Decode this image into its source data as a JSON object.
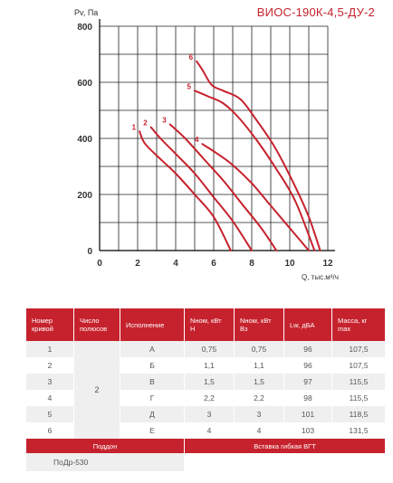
{
  "header": {
    "model": "ВИОС-190К-4,5-ДУ-2",
    "y_axis_label": "Pv, Па",
    "x_axis_label": "Q, тыс.м³/ч"
  },
  "colors": {
    "accent": "#c6222d",
    "grid": "#222222",
    "row_alt": "#efefef"
  },
  "chart_data": {
    "type": "line",
    "title": "ВИОС-190К-4,5-ДУ-2",
    "xlabel": "Q, тыс.м³/ч",
    "ylabel": "Pv, Па",
    "xlim": [
      0,
      12
    ],
    "ylim": [
      0,
      800
    ],
    "xticks": [
      0,
      2,
      4,
      6,
      8,
      10,
      12
    ],
    "yticks": [
      0,
      200,
      400,
      600,
      800
    ],
    "x_grid_step": 1,
    "y_grid_step": 100,
    "grid": true,
    "series": [
      {
        "name": "1",
        "points": [
          [
            2.1,
            425
          ],
          [
            2.4,
            380
          ],
          [
            3.3,
            320
          ],
          [
            4.0,
            275
          ],
          [
            5.0,
            200
          ],
          [
            6.0,
            120
          ],
          [
            6.9,
            0
          ]
        ]
      },
      {
        "name": "2",
        "points": [
          [
            2.7,
            440
          ],
          [
            3.2,
            400
          ],
          [
            4.0,
            345
          ],
          [
            5.0,
            275
          ],
          [
            6.0,
            190
          ],
          [
            7.0,
            105
          ],
          [
            8.0,
            0
          ]
        ]
      },
      {
        "name": "3",
        "points": [
          [
            3.7,
            450
          ],
          [
            4.5,
            400
          ],
          [
            5.5,
            325
          ],
          [
            6.5,
            250
          ],
          [
            7.5,
            165
          ],
          [
            8.5,
            80
          ],
          [
            9.3,
            0
          ]
        ]
      },
      {
        "name": "4",
        "points": [
          [
            5.4,
            380
          ],
          [
            6.2,
            345
          ],
          [
            7.0,
            305
          ],
          [
            8.0,
            240
          ],
          [
            9.0,
            160
          ],
          [
            10.0,
            80
          ],
          [
            11.0,
            0
          ]
        ]
      },
      {
        "name": "5",
        "points": [
          [
            5.0,
            570
          ],
          [
            5.7,
            550
          ],
          [
            6.5,
            525
          ],
          [
            7.3,
            475
          ],
          [
            8.3,
            390
          ],
          [
            9.3,
            290
          ],
          [
            10.3,
            175
          ],
          [
            11.3,
            0
          ]
        ]
      },
      {
        "name": "6",
        "points": [
          [
            5.1,
            675
          ],
          [
            5.4,
            645
          ],
          [
            5.9,
            590
          ],
          [
            6.5,
            570
          ],
          [
            7.4,
            540
          ],
          [
            8.2,
            470
          ],
          [
            9.2,
            370
          ],
          [
            10.2,
            240
          ],
          [
            11.0,
            120
          ],
          [
            11.6,
            0
          ]
        ]
      }
    ]
  },
  "table": {
    "headers": [
      "Номер кривой",
      "Число полюсов",
      "Исполнение",
      "Nном, кВт Н",
      "Nном, кВт Вз",
      "Lw, дБА",
      "Масса, кг max"
    ],
    "poles": "2",
    "rows": [
      {
        "curve": "1",
        "variant": "А",
        "n_h": "0,75",
        "n_vz": "0,75",
        "lw": "96",
        "mass": "107,5"
      },
      {
        "curve": "2",
        "variant": "Б",
        "n_h": "1,1",
        "n_vz": "1,1",
        "lw": "96",
        "mass": "107,5"
      },
      {
        "curve": "3",
        "variant": "В",
        "n_h": "1,5",
        "n_vz": "1,5",
        "lw": "97",
        "mass": "115,5"
      },
      {
        "curve": "4",
        "variant": "Г",
        "n_h": "2,2",
        "n_vz": "2,2",
        "lw": "98",
        "mass": "115,5"
      },
      {
        "curve": "5",
        "variant": "Д",
        "n_h": "3",
        "n_vz": "3",
        "lw": "101",
        "mass": "118,5"
      },
      {
        "curve": "6",
        "variant": "Е",
        "n_h": "4",
        "n_vz": "4",
        "lw": "103",
        "mass": "131,5"
      }
    ],
    "footer": {
      "left": "Поддон",
      "right": "Вставка гибкая ВГТ",
      "left_value": "ПоДр-530",
      "right_value": ""
    }
  }
}
